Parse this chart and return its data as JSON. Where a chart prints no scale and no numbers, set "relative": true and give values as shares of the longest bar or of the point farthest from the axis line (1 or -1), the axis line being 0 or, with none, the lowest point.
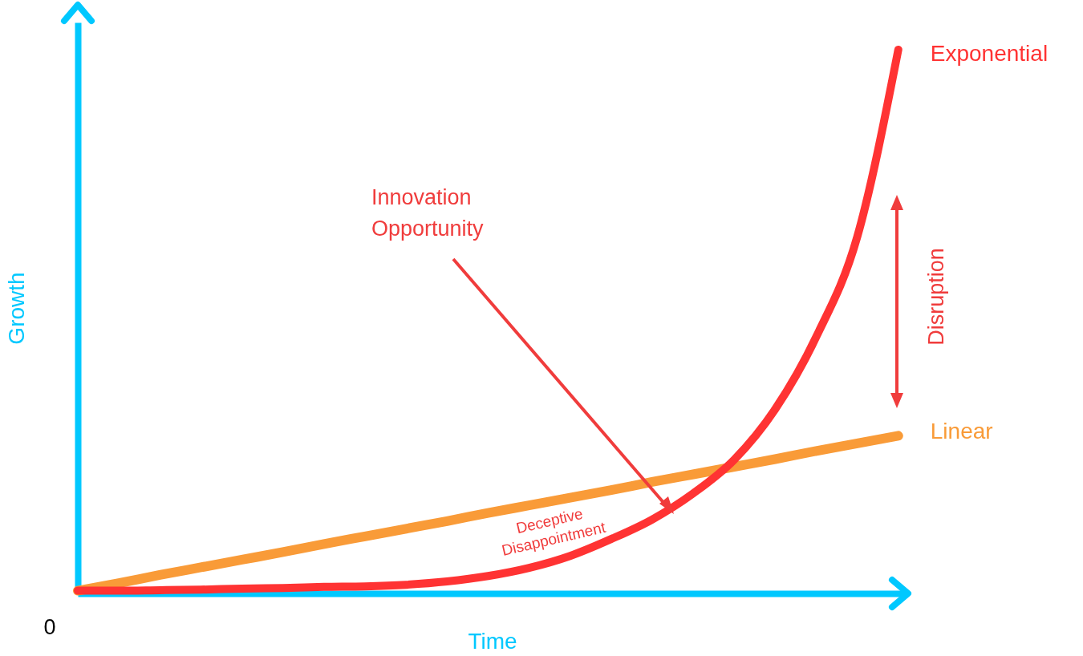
{
  "chart_data": {
    "type": "line",
    "relative": true,
    "xlabel": "Time",
    "ylabel": "Growth",
    "grid": false,
    "line_style": "solid",
    "categories": [
      null,
      null,
      null,
      null,
      null,
      null,
      null,
      null,
      null,
      null,
      null,
      null,
      null,
      null,
      null,
      null,
      null,
      null,
      null,
      null,
      null
    ],
    "series": [
      {
        "name": "Linear",
        "color": "#f99b38",
        "values": [
          0.005,
          0.019,
          0.034,
          0.048,
          0.062,
          0.076,
          0.091,
          0.105,
          0.119,
          0.133,
          0.148,
          0.162,
          0.176,
          0.19,
          0.205,
          0.219,
          0.233,
          0.247,
          0.262,
          0.276,
          0.29
        ]
      },
      {
        "name": "Exponential",
        "color": "#ff3333",
        "values": [
          0.005,
          0.005,
          0.006,
          0.007,
          0.009,
          0.01,
          0.012,
          0.013,
          0.016,
          0.022,
          0.032,
          0.047,
          0.069,
          0.1,
          0.136,
          0.184,
          0.246,
          0.339,
          0.472,
          0.656,
          1
        ]
      }
    ],
    "annotations": [
      "Innovation Opportunity",
      "Deceptive Disappointment",
      "Disruption",
      "0"
    ]
  }
}
